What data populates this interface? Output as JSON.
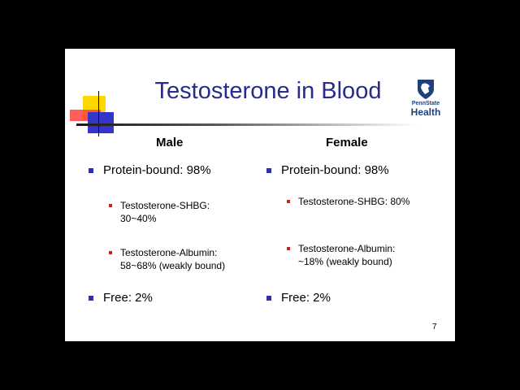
{
  "slide": {
    "title": "Testosterone in Blood",
    "page_number": "7",
    "logo": {
      "line1": "PennState",
      "line2": "Health",
      "icon": "nittany-lion-shield-icon"
    },
    "columns": [
      {
        "heading": "Male",
        "items": [
          {
            "level": 1,
            "text": "Protein-bound: 98%"
          },
          {
            "level": 2,
            "line1": "Testosterone-SHBG:",
            "line2": "30~40%"
          },
          {
            "level": 2,
            "line1": "Testosterone-Albumin:",
            "line2": "58~68% (weakly bound)"
          },
          {
            "level": 1,
            "text": "Free: 2%"
          }
        ]
      },
      {
        "heading": "Female",
        "items": [
          {
            "level": 1,
            "text": "Protein-bound: 98%"
          },
          {
            "level": 2,
            "line1": "Testosterone-SHBG: 80%"
          },
          {
            "level": 2,
            "line1": "Testosterone-Albumin:",
            "line2": "~18% (weakly bound)"
          },
          {
            "level": 1,
            "text": "Free: 2%"
          }
        ]
      }
    ],
    "colors": {
      "title": "#2a2a8a",
      "bullet_level1": "#2e2eb8",
      "bullet_level2": "#cc1f1f",
      "logo": "#1e407c",
      "background": "#000000",
      "slide": "#ffffff"
    }
  }
}
